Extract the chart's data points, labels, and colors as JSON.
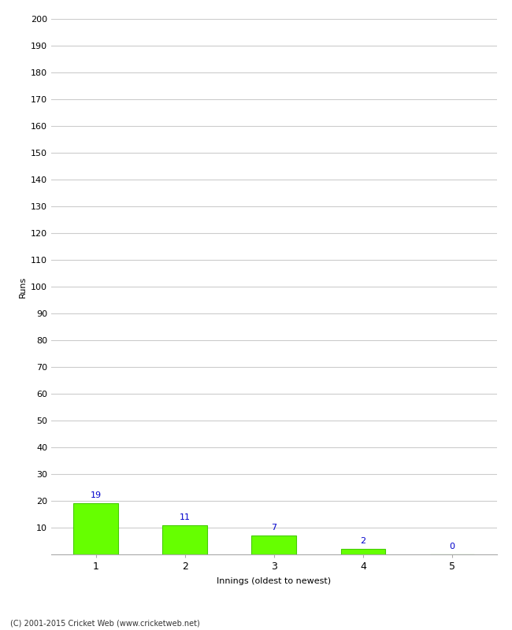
{
  "categories": [
    1,
    2,
    3,
    4,
    5
  ],
  "values": [
    19,
    11,
    7,
    2,
    0
  ],
  "bar_color": "#66ff00",
  "bar_edge_color": "#44cc00",
  "ylabel": "Runs",
  "xlabel": "Innings (oldest to newest)",
  "ylim": [
    0,
    200
  ],
  "yticks": [
    0,
    10,
    20,
    30,
    40,
    50,
    60,
    70,
    80,
    90,
    100,
    110,
    120,
    130,
    140,
    150,
    160,
    170,
    180,
    190,
    200
  ],
  "footer": "(C) 2001-2015 Cricket Web (www.cricketweb.net)",
  "label_color": "#0000cc",
  "background_color": "#ffffff",
  "grid_color": "#cccccc",
  "bar_width": 0.5
}
